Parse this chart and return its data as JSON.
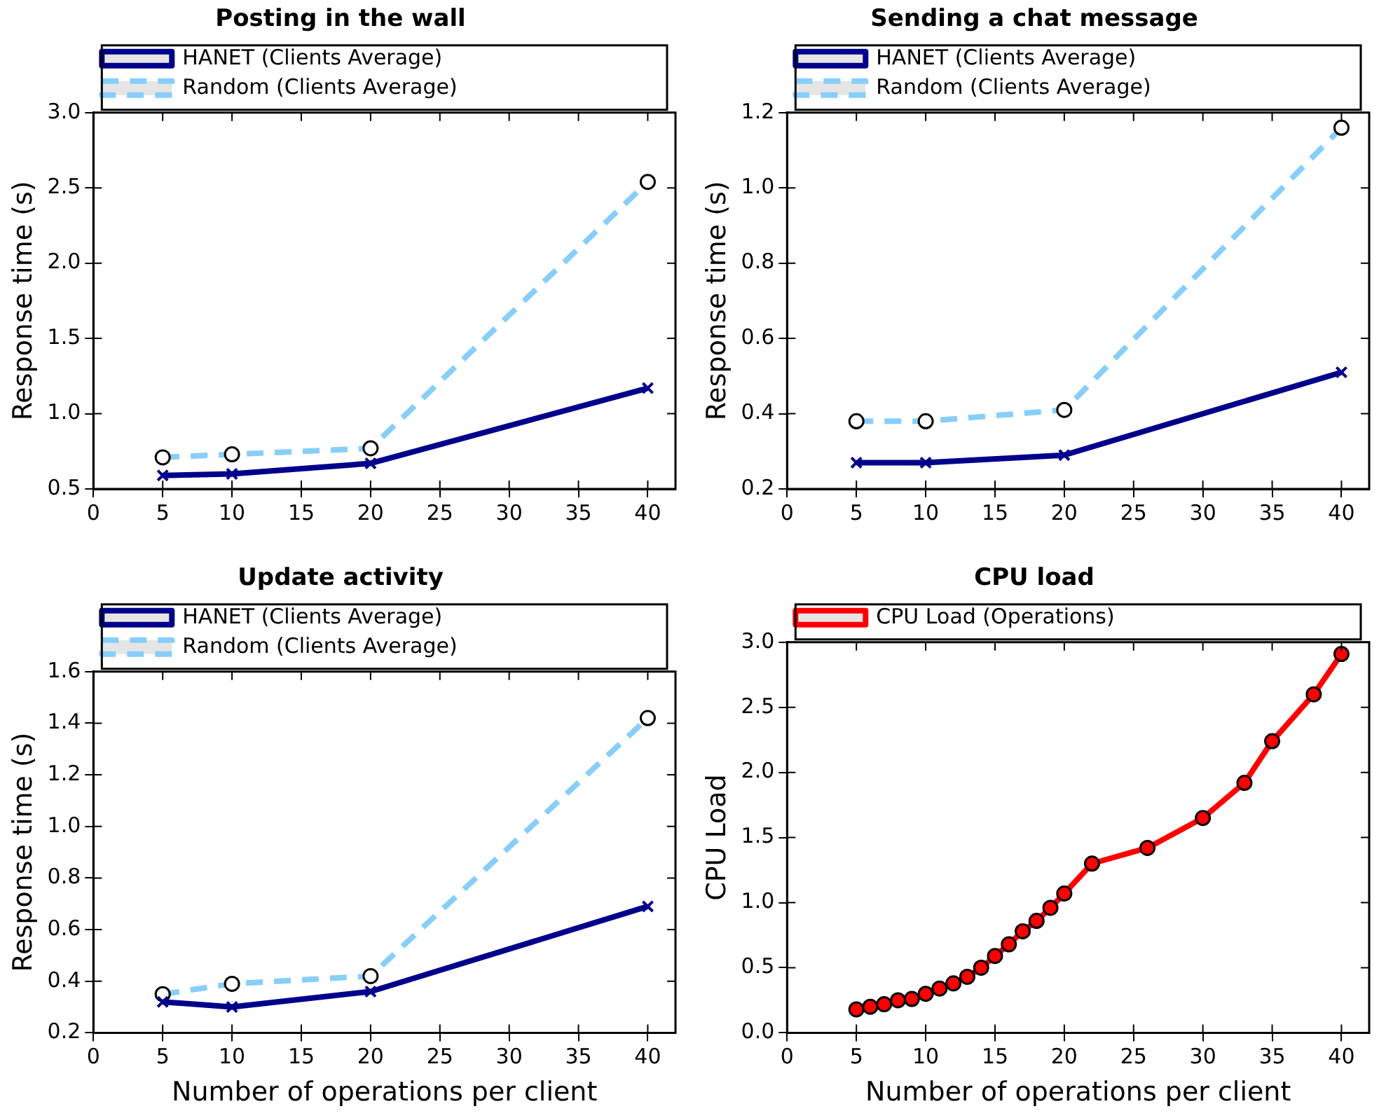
{
  "chart_data": [
    {
      "type": "line",
      "title": "Posting in the wall",
      "ylabel": "Response time (s)",
      "x": [
        5,
        10,
        20,
        40
      ],
      "xlim": [
        0,
        42
      ],
      "xticks": [
        0,
        5,
        10,
        15,
        20,
        25,
        30,
        35,
        40
      ],
      "ylim": [
        0.5,
        3.0
      ],
      "yticks": [
        {
          "value": 0.5,
          "label": "0.5"
        },
        {
          "value": 1.0,
          "label": "1.0"
        },
        {
          "value": 1.5,
          "label": "1.5"
        },
        {
          "value": 2.0,
          "label": "2.0"
        },
        {
          "value": 2.5,
          "label": "2.5"
        },
        {
          "value": 3.0,
          "label": "3.0"
        }
      ],
      "grid": false,
      "legend": "top left",
      "series": [
        {
          "name": "HANET (Clients Average)",
          "color": "#00008b",
          "marker": "cross",
          "line_style": "solid",
          "values": [
            0.59,
            0.6,
            0.67,
            1.17
          ]
        },
        {
          "name": "Random (Clients Average)",
          "color": "#87cefa",
          "marker": "circle",
          "line_style": "dashed",
          "values": [
            0.71,
            0.73,
            0.77,
            2.54
          ]
        }
      ]
    },
    {
      "type": "line",
      "title": "Sending a chat message",
      "ylabel": "Response time (s)",
      "x": [
        5,
        10,
        20,
        40
      ],
      "xlim": [
        0,
        42
      ],
      "xticks": [
        0,
        5,
        10,
        15,
        20,
        25,
        30,
        35,
        40
      ],
      "ylim": [
        0.2,
        1.2
      ],
      "yticks": [
        0.2,
        0.4,
        0.6,
        0.8,
        {
          "value": 1.0,
          "label": "1.0"
        },
        1.2
      ],
      "grid": false,
      "legend": "top left",
      "series": [
        {
          "name": "HANET (Clients Average)",
          "color": "#00008b",
          "marker": "cross",
          "line_style": "solid",
          "values": [
            0.27,
            0.27,
            0.29,
            0.51
          ]
        },
        {
          "name": "Random (Clients Average)",
          "color": "#87cefa",
          "marker": "circle",
          "line_style": "dashed",
          "values": [
            0.38,
            0.38,
            0.41,
            1.16
          ]
        }
      ]
    },
    {
      "type": "line",
      "title": "Update activity",
      "xlabel": "Number of operations per client",
      "ylabel": "Response time (s)",
      "x": [
        5,
        10,
        20,
        40
      ],
      "xlim": [
        0,
        42
      ],
      "xticks": [
        0,
        5,
        10,
        15,
        20,
        25,
        30,
        35,
        40
      ],
      "ylim": [
        0.2,
        1.6
      ],
      "yticks": [
        0.2,
        0.4,
        0.6,
        0.8,
        {
          "value": 1.0,
          "label": "1.0"
        },
        1.2,
        1.4,
        1.6
      ],
      "grid": false,
      "legend": "top left",
      "series": [
        {
          "name": "HANET (Clients Average)",
          "color": "#00008b",
          "marker": "cross",
          "line_style": "solid",
          "values": [
            0.32,
            0.3,
            0.36,
            0.69
          ]
        },
        {
          "name": "Random (Clients Average)",
          "color": "#87cefa",
          "marker": "circle",
          "line_style": "dashed",
          "values": [
            0.35,
            0.39,
            0.42,
            1.42
          ]
        }
      ]
    },
    {
      "type": "line",
      "title": "CPU load",
      "xlabel": "Number of operations per client",
      "ylabel": "CPU Load",
      "x": [
        5,
        6,
        7,
        8,
        9,
        10,
        11,
        12,
        13,
        14,
        15,
        16,
        17,
        18,
        19,
        20,
        22,
        26,
        30,
        33,
        35,
        38,
        40
      ],
      "xlim": [
        0,
        42
      ],
      "xticks": [
        0,
        5,
        10,
        15,
        20,
        25,
        30,
        35,
        40
      ],
      "ylim": [
        0.0,
        3.0
      ],
      "yticks": [
        {
          "value": 0,
          "label": "0.0"
        },
        0.5,
        {
          "value": 1.0,
          "label": "1.0"
        },
        1.5,
        {
          "value": 2.0,
          "label": "2.0"
        },
        2.5,
        {
          "value": 3.0,
          "label": "3.0"
        }
      ],
      "grid": false,
      "legend": "top left",
      "series": [
        {
          "name": "CPU Load (Operations)",
          "color": "#ff0000",
          "marker": "circle",
          "line_style": "solid",
          "values": [
            0.18,
            0.2,
            0.22,
            0.25,
            0.26,
            0.3,
            0.34,
            0.38,
            0.43,
            0.5,
            0.59,
            0.68,
            0.78,
            0.86,
            0.96,
            1.07,
            1.3,
            1.42,
            1.65,
            1.92,
            2.24,
            2.6,
            2.91
          ]
        }
      ]
    }
  ]
}
